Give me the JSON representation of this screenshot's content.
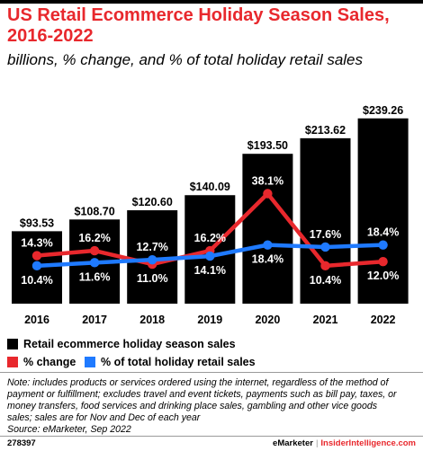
{
  "header": {
    "title_line1": "US Retail Ecommerce Holiday Season Sales,",
    "title_line2": "2016-2022",
    "subtitle": "billions, % change, and % of total holiday retail sales"
  },
  "colors": {
    "bar": "#000000",
    "change": "#e8282d",
    "share": "#1f7aff"
  },
  "chart_data": {
    "type": "bar",
    "categories": [
      "2016",
      "2017",
      "2018",
      "2019",
      "2020",
      "2021",
      "2022"
    ],
    "series": [
      {
        "name": "Retail ecommerce holiday season sales",
        "type": "bar",
        "values": [
          93.53,
          108.7,
          120.6,
          140.09,
          193.5,
          213.62,
          239.26
        ],
        "labels": [
          "$93.53",
          "$108.70",
          "$120.60",
          "$140.09",
          "$193.50",
          "$213.62",
          "$239.26"
        ]
      },
      {
        "name": "% change",
        "type": "line",
        "values": [
          14.3,
          16.2,
          11.0,
          16.2,
          38.1,
          10.4,
          12.0
        ],
        "labels": [
          "14.3%",
          "16.2%",
          "11.0%",
          "16.2%",
          "38.1%",
          "10.4%",
          "12.0%"
        ]
      },
      {
        "name": "% of total holiday retail sales",
        "type": "line",
        "values": [
          10.4,
          11.6,
          12.7,
          14.1,
          18.4,
          17.6,
          18.4
        ],
        "labels": [
          "10.4%",
          "11.6%",
          "12.7%",
          "14.1%",
          "18.4%",
          "17.6%",
          "18.4%"
        ]
      }
    ],
    "legend_position": "bottom-left",
    "grid": false
  },
  "legend": [
    {
      "label": "Retail ecommerce holiday season sales",
      "swatches": [
        "bar"
      ]
    },
    {
      "label": "% change",
      "swatches": [
        "change"
      ]
    },
    {
      "label": "% of total holiday retail sales",
      "swatches": [
        "share"
      ]
    }
  ],
  "note": {
    "lines": [
      "Note: includes products or services ordered using the internet, regardless of the method of",
      "payment or fulfillment; excludes travel and event tickets, payments such as bill pay, taxes, or",
      "money transfers, food services and drinking place sales, gambling and other vice goods",
      "sales; sales are for Nov and Dec of each year",
      "Source: eMarketer, Sep 2022"
    ]
  },
  "footer": {
    "id": "278397",
    "brand1": "eMarketer",
    "separator": "|",
    "brand2": "InsiderIntelligence.com"
  }
}
